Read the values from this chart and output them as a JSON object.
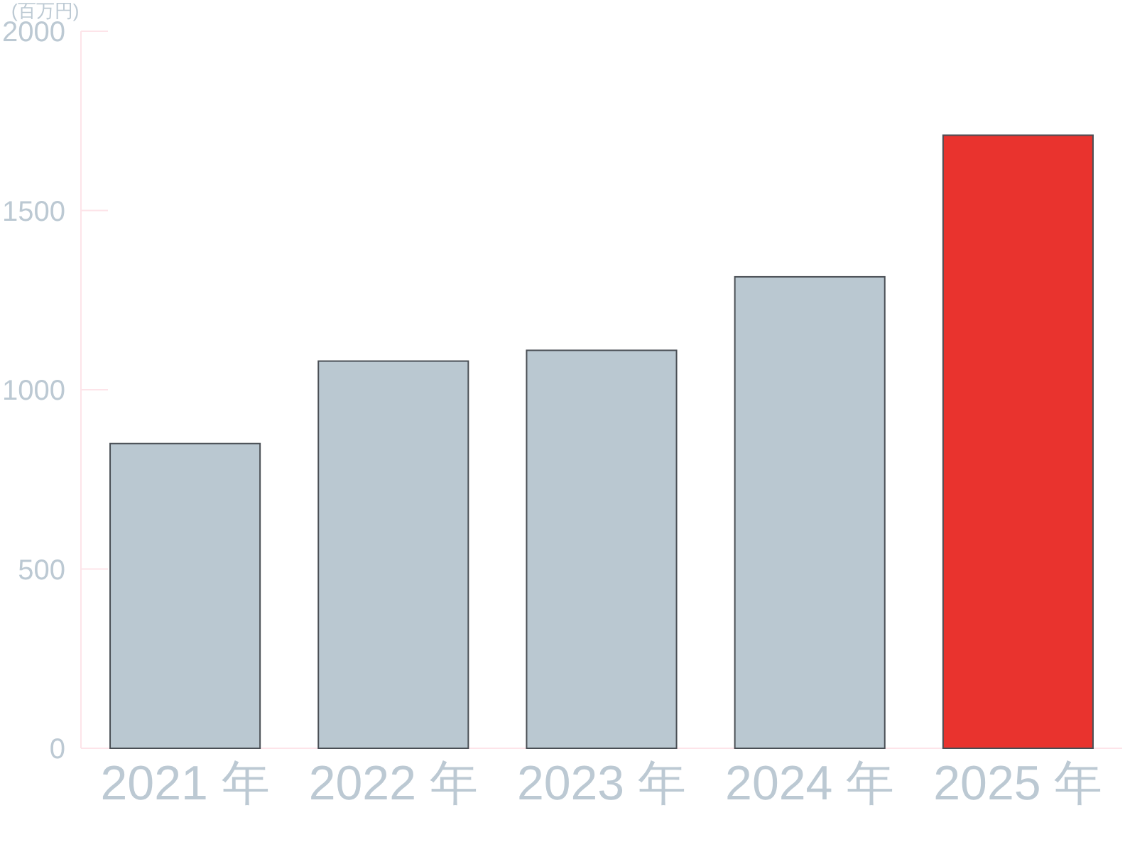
{
  "chart_data": {
    "type": "bar",
    "ylabel": "(百万円)",
    "categories": [
      "2021 年",
      "2022 年",
      "2023 年",
      "2024 年",
      "2025 年"
    ],
    "values": [
      850,
      1080,
      1110,
      1315,
      1710
    ],
    "colors": [
      "#bac8d1",
      "#bac8d1",
      "#bac8d1",
      "#bac8d1",
      "#e9332e"
    ],
    "ylim": [
      0,
      2000
    ],
    "yticks": [
      0,
      500,
      1000,
      1500,
      2000
    ],
    "grid": false
  }
}
